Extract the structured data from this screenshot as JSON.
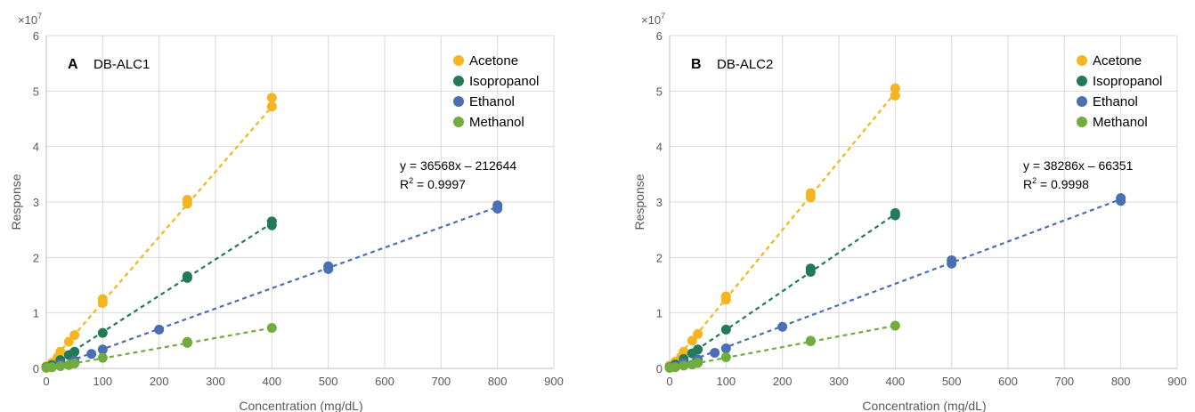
{
  "chart_data": [
    {
      "type": "scatter",
      "panel_letter": "A",
      "title": "DB-ALC1",
      "xlabel": "Concentration (mg/dL)",
      "ylabel": "Response",
      "y_multiplier": "×10",
      "y_multiplier_exponent": "7",
      "xlim": [
        0,
        900
      ],
      "ylim": [
        0,
        6
      ],
      "xticks": [
        0,
        100,
        200,
        300,
        400,
        500,
        600,
        700,
        800,
        900
      ],
      "yticks": [
        0,
        1,
        2,
        3,
        4,
        5,
        6
      ],
      "grid": true,
      "legend_position": "top-right",
      "annotation": {
        "equation": "y = 36568x – 212644",
        "r2_prefix": "R",
        "r2_exponent": "2",
        "r2_value": " = 0.9997"
      },
      "series": [
        {
          "name": "Acetone",
          "color": "#f5b520",
          "points": [
            [
              0,
              0.04
            ],
            [
              10,
              0.1
            ],
            [
              20,
              0.2
            ],
            [
              25,
              0.3
            ],
            [
              40,
              0.48
            ],
            [
              50,
              0.6
            ],
            [
              100,
              1.18
            ],
            [
              100,
              1.25
            ],
            [
              250,
              2.97
            ],
            [
              250,
              3.04
            ],
            [
              400,
              4.72
            ],
            [
              400,
              4.88
            ]
          ],
          "fit": [
            [
              0,
              0.02
            ],
            [
              400,
              4.72
            ]
          ]
        },
        {
          "name": "Isopropanol",
          "color": "#237a57",
          "points": [
            [
              0,
              0.02
            ],
            [
              10,
              0.06
            ],
            [
              25,
              0.15
            ],
            [
              40,
              0.24
            ],
            [
              50,
              0.3
            ],
            [
              100,
              0.64
            ],
            [
              250,
              1.63
            ],
            [
              250,
              1.66
            ],
            [
              400,
              2.58
            ],
            [
              400,
              2.65
            ]
          ],
          "fit": [
            [
              0,
              0
            ],
            [
              400,
              2.62
            ]
          ]
        },
        {
          "name": "Ethanol",
          "color": "#4a6fb5",
          "points": [
            [
              0,
              0.02
            ],
            [
              10,
              0.03
            ],
            [
              25,
              0.08
            ],
            [
              50,
              0.14
            ],
            [
              80,
              0.26
            ],
            [
              100,
              0.34
            ],
            [
              200,
              0.7
            ],
            [
              500,
              1.79
            ],
            [
              500,
              1.84
            ],
            [
              800,
              2.88
            ],
            [
              800,
              2.94
            ]
          ],
          "fit": [
            [
              0,
              -0.02
            ],
            [
              800,
              2.91
            ]
          ]
        },
        {
          "name": "Methanol",
          "color": "#72ac3f",
          "points": [
            [
              0,
              0.01
            ],
            [
              10,
              0.02
            ],
            [
              25,
              0.04
            ],
            [
              40,
              0.06
            ],
            [
              50,
              0.09
            ],
            [
              100,
              0.19
            ],
            [
              250,
              0.46
            ],
            [
              250,
              0.48
            ],
            [
              400,
              0.73
            ]
          ],
          "fit": [
            [
              0,
              0
            ],
            [
              400,
              0.73
            ]
          ]
        }
      ]
    },
    {
      "type": "scatter",
      "panel_letter": "B",
      "title": "DB-ALC2",
      "xlabel": "Concentration (mg/dL)",
      "ylabel": "Response",
      "y_multiplier": "×10",
      "y_multiplier_exponent": "7",
      "xlim": [
        0,
        900
      ],
      "ylim": [
        0,
        6
      ],
      "xticks": [
        0,
        100,
        200,
        300,
        400,
        500,
        600,
        700,
        800,
        900
      ],
      "yticks": [
        0,
        1,
        2,
        3,
        4,
        5,
        6
      ],
      "grid": true,
      "legend_position": "top-right",
      "annotation": {
        "equation": "y = 38286x – 66351",
        "r2_prefix": "R",
        "r2_exponent": "2",
        "r2_value": " = 0.9998"
      },
      "series": [
        {
          "name": "Acetone",
          "color": "#f5b520",
          "points": [
            [
              0,
              0.05
            ],
            [
              10,
              0.12
            ],
            [
              20,
              0.2
            ],
            [
              25,
              0.3
            ],
            [
              40,
              0.5
            ],
            [
              50,
              0.62
            ],
            [
              100,
              1.24
            ],
            [
              100,
              1.3
            ],
            [
              250,
              3.08
            ],
            [
              250,
              3.16
            ],
            [
              400,
              4.92
            ],
            [
              400,
              5.05
            ]
          ],
          "fit": [
            [
              0,
              0.02
            ],
            [
              400,
              4.97
            ]
          ]
        },
        {
          "name": "Isopropanol",
          "color": "#237a57",
          "points": [
            [
              0,
              0.02
            ],
            [
              10,
              0.07
            ],
            [
              25,
              0.17
            ],
            [
              40,
              0.27
            ],
            [
              50,
              0.34
            ],
            [
              100,
              0.7
            ],
            [
              250,
              1.74
            ],
            [
              250,
              1.8
            ],
            [
              400,
              2.76
            ],
            [
              400,
              2.8
            ]
          ],
          "fit": [
            [
              0,
              0
            ],
            [
              400,
              2.78
            ]
          ]
        },
        {
          "name": "Ethanol",
          "color": "#4a6fb5",
          "points": [
            [
              0,
              0.02
            ],
            [
              10,
              0.03
            ],
            [
              25,
              0.09
            ],
            [
              50,
              0.16
            ],
            [
              80,
              0.28
            ],
            [
              100,
              0.36
            ],
            [
              200,
              0.75
            ],
            [
              500,
              1.89
            ],
            [
              500,
              1.95
            ],
            [
              800,
              3.02
            ],
            [
              800,
              3.07
            ]
          ],
          "fit": [
            [
              0,
              0
            ],
            [
              800,
              3.05
            ]
          ]
        },
        {
          "name": "Methanol",
          "color": "#72ac3f",
          "points": [
            [
              0,
              0.01
            ],
            [
              10,
              0.02
            ],
            [
              25,
              0.05
            ],
            [
              40,
              0.07
            ],
            [
              50,
              0.1
            ],
            [
              100,
              0.2
            ],
            [
              250,
              0.49
            ],
            [
              250,
              0.5
            ],
            [
              400,
              0.77
            ]
          ],
          "fit": [
            [
              0,
              0
            ],
            [
              400,
              0.77
            ]
          ]
        }
      ]
    }
  ]
}
